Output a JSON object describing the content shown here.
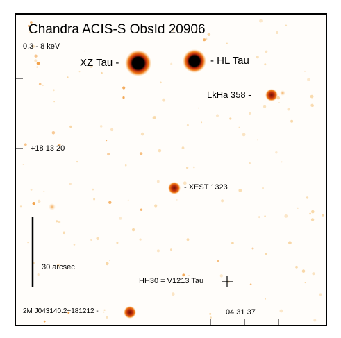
{
  "figure": {
    "title": "Chandra ACIS-S ObsId 20906",
    "energy_band": "0.3 - 8 keV",
    "colors": {
      "background": "#fffdfa",
      "faint_source": "#f4b25a",
      "bright_source_core": "#000000",
      "bright_source_halo": "#f07a18",
      "medium_source_core": "#8a1a0c",
      "frame": "#000000"
    },
    "labels": {
      "xz_tau": "XZ Tau -",
      "hl_tau": "- HL Tau",
      "lkha_358": "LkHa 358 -",
      "xest_1323": "- XEST 1323",
      "hh30": "HH30 = V1213 Tau",
      "twomass": "2M J043140.2+181212 -"
    },
    "axes": {
      "dec_label": "+18 13 20",
      "ra_label": "04 31 37"
    },
    "scale_bar": {
      "label": "30 arcsec"
    }
  }
}
